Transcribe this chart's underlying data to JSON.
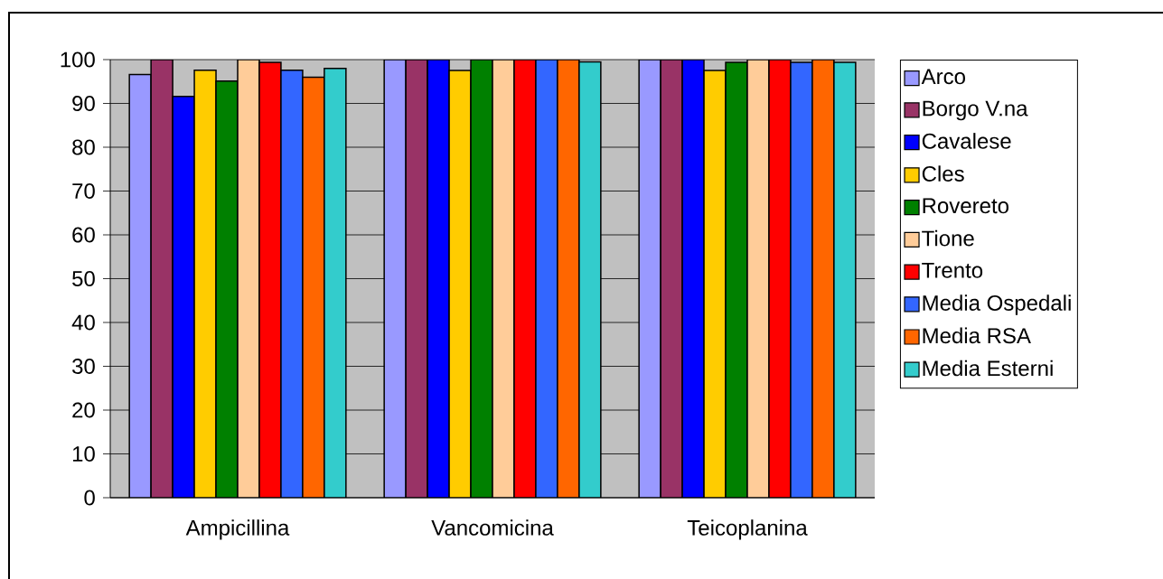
{
  "chart_data": {
    "type": "bar",
    "categories": [
      "Ampicillina",
      "Vancomicina",
      "Teicoplanina"
    ],
    "series": [
      {
        "name": "Arco",
        "color": "#9999ff",
        "values": [
          96.6,
          100,
          100
        ]
      },
      {
        "name": "Borgo V.na",
        "color": "#993366",
        "values": [
          100,
          100,
          100
        ]
      },
      {
        "name": "Cavalese",
        "color": "#0000ff",
        "values": [
          91.6,
          100,
          100
        ]
      },
      {
        "name": "Cles",
        "color": "#ffcc00",
        "values": [
          97.6,
          97.5,
          97.5
        ]
      },
      {
        "name": "Rovereto",
        "color": "#008000",
        "values": [
          95.1,
          100,
          99.4
        ]
      },
      {
        "name": "Tione",
        "color": "#ffcc99",
        "values": [
          100,
          100,
          100
        ]
      },
      {
        "name": "Trento",
        "color": "#ff0000",
        "values": [
          99.4,
          100,
          100
        ]
      },
      {
        "name": "Media Ospedali",
        "color": "#3366ff",
        "values": [
          97.6,
          100,
          99.4
        ]
      },
      {
        "name": "Media RSA",
        "color": "#ff6600",
        "values": [
          96.0,
          100,
          100
        ]
      },
      {
        "name": "Media Esterni",
        "color": "#33cccc",
        "values": [
          98.0,
          99.5,
          99.4
        ]
      }
    ],
    "ylim": [
      0,
      100
    ],
    "yticks": [
      0,
      10,
      20,
      30,
      40,
      50,
      60,
      70,
      80,
      90,
      100
    ],
    "grid": "y",
    "legend": "right"
  }
}
